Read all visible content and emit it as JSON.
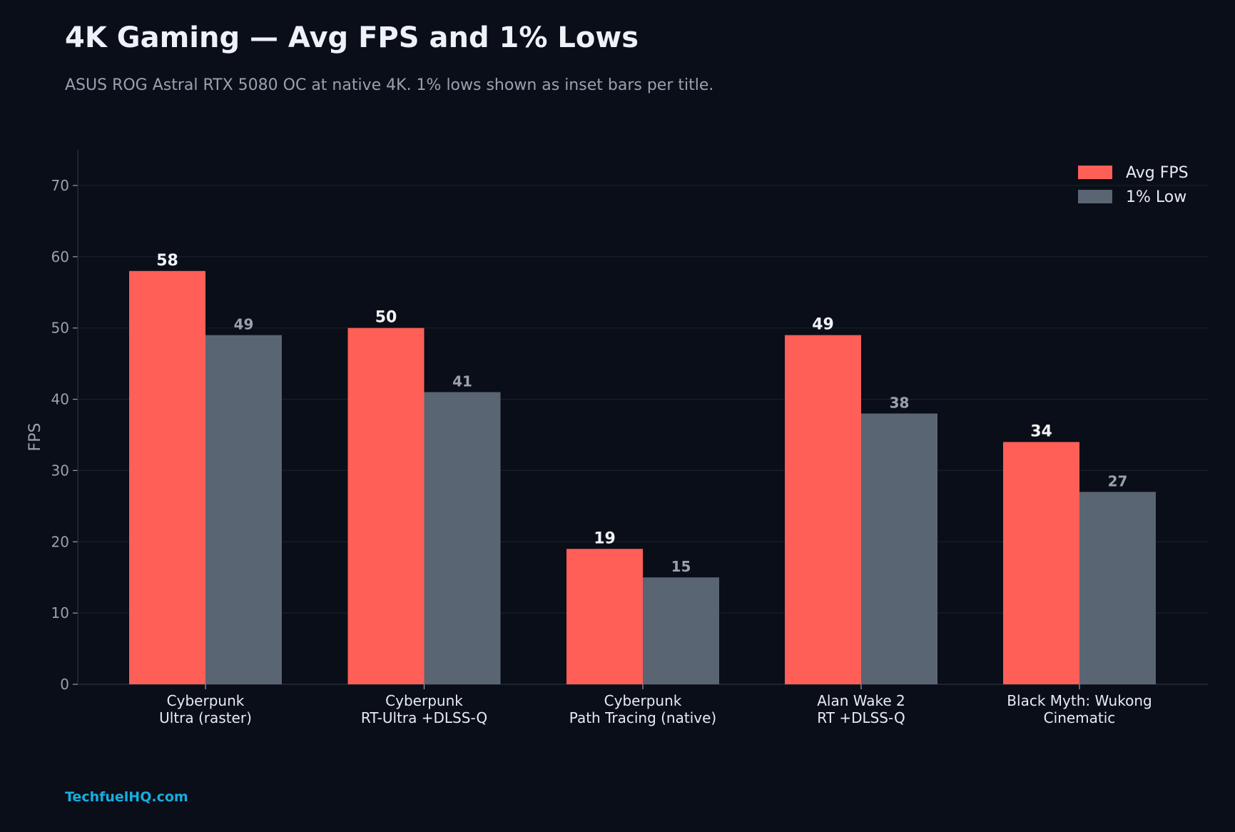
{
  "chart_data": {
    "type": "bar",
    "title": "4K Gaming — Avg FPS and 1% Lows",
    "subtitle": "ASUS ROG Astral RTX 5080 OC at native 4K. 1% lows shown as inset bars per title.",
    "xlabel": "",
    "ylabel": "FPS",
    "ylim": [
      0,
      75
    ],
    "yticks": [
      0,
      10,
      20,
      30,
      40,
      50,
      60,
      70
    ],
    "grid": true,
    "legend_position": "top-right",
    "categories": [
      [
        "Cyberpunk",
        "Ultra (raster)"
      ],
      [
        "Cyberpunk",
        "RT-Ultra +DLSS-Q"
      ],
      [
        "Cyberpunk",
        "Path Tracing (native)"
      ],
      [
        "Alan Wake 2",
        "RT +DLSS-Q"
      ],
      [
        "Black Myth: Wukong",
        "Cinematic"
      ]
    ],
    "series": [
      {
        "name": "Avg FPS",
        "color": "#ff5f57",
        "values": [
          58,
          50,
          19,
          49,
          34
        ]
      },
      {
        "name": "1% Low",
        "color": "#5a6573",
        "values": [
          49,
          41,
          15,
          38,
          27
        ]
      }
    ]
  },
  "source": "TechfuelHQ.com",
  "colors": {
    "background": "#0a0e18",
    "grid": "#1a1f2b",
    "axis": "#2a303c",
    "source": "#16aee0"
  }
}
